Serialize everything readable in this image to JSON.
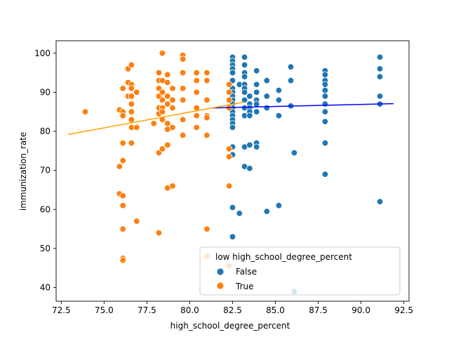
{
  "chart_data": {
    "type": "scatter",
    "xlabel": "high_school_degree_percent",
    "ylabel": "immunization_rate",
    "xlim": [
      72.2,
      92.8
    ],
    "ylim": [
      36.5,
      103.2
    ],
    "xticks": [
      "72.5",
      "75.0",
      "77.5",
      "80.0",
      "82.5",
      "85.0",
      "87.5",
      "90.0",
      "92.5"
    ],
    "yticks": [
      "40",
      "50",
      "60",
      "70",
      "80",
      "90",
      "100"
    ],
    "grid": false,
    "legend": {
      "title": "low high_school_degree_percent",
      "placement": "lower-right",
      "entries": [
        "False",
        "True"
      ]
    },
    "series": [
      {
        "name": "False",
        "color": "#1f77b4",
        "points": [
          [
            82.5,
            99
          ],
          [
            82.5,
            98
          ],
          [
            82.5,
            97
          ],
          [
            82.5,
            96
          ],
          [
            82.5,
            95
          ],
          [
            82.5,
            93
          ],
          [
            82.5,
            91
          ],
          [
            82.5,
            90
          ],
          [
            82.5,
            89
          ],
          [
            82.5,
            88
          ],
          [
            82.5,
            87
          ],
          [
            82.5,
            86
          ],
          [
            82.5,
            85
          ],
          [
            82.5,
            84
          ],
          [
            82.5,
            83
          ],
          [
            82.5,
            82
          ],
          [
            82.5,
            81
          ],
          [
            82.5,
            76
          ],
          [
            82.5,
            74
          ],
          [
            82.5,
            60.5
          ],
          [
            82.5,
            53
          ],
          [
            82.9,
            92
          ],
          [
            82.9,
            59
          ],
          [
            83.2,
            99
          ],
          [
            83.2,
            97
          ],
          [
            83.2,
            95
          ],
          [
            83.2,
            94
          ],
          [
            83.2,
            92
          ],
          [
            83.2,
            91
          ],
          [
            83.2,
            90
          ],
          [
            83.2,
            88
          ],
          [
            83.2,
            86
          ],
          [
            83.2,
            84
          ],
          [
            83.2,
            76
          ],
          [
            83.2,
            71
          ],
          [
            83.5,
            89
          ],
          [
            83.5,
            87
          ],
          [
            83.5,
            86
          ],
          [
            83.5,
            85
          ],
          [
            83.5,
            84
          ],
          [
            83.5,
            76.5
          ],
          [
            83.5,
            70.5
          ],
          [
            83.9,
            95.5
          ],
          [
            83.9,
            92
          ],
          [
            83.9,
            90
          ],
          [
            83.9,
            88
          ],
          [
            83.9,
            87
          ],
          [
            83.9,
            85
          ],
          [
            83.9,
            77
          ],
          [
            83.9,
            76
          ],
          [
            84.5,
            93
          ],
          [
            84.5,
            89
          ],
          [
            84.5,
            86
          ],
          [
            84.5,
            59.5
          ],
          [
            85.2,
            90.5
          ],
          [
            85.2,
            88
          ],
          [
            85.2,
            84
          ],
          [
            85.2,
            61
          ],
          [
            85.9,
            96.5
          ],
          [
            85.9,
            93
          ],
          [
            85.9,
            86.5
          ],
          [
            86.1,
            74.5
          ],
          [
            86.1,
            39
          ],
          [
            87.9,
            95.5
          ],
          [
            87.9,
            94.5
          ],
          [
            87.9,
            93
          ],
          [
            87.9,
            92
          ],
          [
            87.9,
            90.5
          ],
          [
            87.9,
            89
          ],
          [
            87.9,
            87
          ],
          [
            87.9,
            85
          ],
          [
            87.9,
            82.5
          ],
          [
            87.9,
            77
          ],
          [
            87.9,
            69
          ],
          [
            91.1,
            99
          ],
          [
            91.1,
            96
          ],
          [
            91.1,
            94
          ],
          [
            91.1,
            89
          ],
          [
            91.1,
            87
          ],
          [
            91.1,
            62
          ]
        ],
        "fit_line": [
          [
            81.3,
            86.0
          ],
          [
            91.9,
            87.1
          ]
        ],
        "fit_color": "#0000ff"
      },
      {
        "name": "True",
        "color": "#ff7f0e",
        "points": [
          [
            73.9,
            85
          ],
          [
            75.9,
            85.5
          ],
          [
            75.9,
            71
          ],
          [
            75.9,
            64
          ],
          [
            76.1,
            91
          ],
          [
            76.1,
            85
          ],
          [
            76.1,
            84
          ],
          [
            76.1,
            77
          ],
          [
            76.1,
            72.5
          ],
          [
            76.1,
            63.5
          ],
          [
            76.1,
            61
          ],
          [
            76.1,
            55
          ],
          [
            76.1,
            47.5
          ],
          [
            76.1,
            47
          ],
          [
            76.4,
            96
          ],
          [
            76.4,
            92.5
          ],
          [
            76.4,
            89
          ],
          [
            76.6,
            97
          ],
          [
            76.6,
            92
          ],
          [
            76.6,
            91
          ],
          [
            76.6,
            89
          ],
          [
            76.6,
            87
          ],
          [
            76.6,
            85
          ],
          [
            76.6,
            83
          ],
          [
            76.6,
            81
          ],
          [
            76.6,
            77
          ],
          [
            76.9,
            90
          ],
          [
            76.9,
            81
          ],
          [
            76.9,
            57
          ],
          [
            77.9,
            82
          ],
          [
            78.2,
            95
          ],
          [
            78.2,
            93
          ],
          [
            78.2,
            91
          ],
          [
            78.2,
            89
          ],
          [
            78.2,
            86
          ],
          [
            78.2,
            84.5
          ],
          [
            78.2,
            74.5
          ],
          [
            78.2,
            54
          ],
          [
            78.4,
            100
          ],
          [
            78.4,
            93
          ],
          [
            78.4,
            90
          ],
          [
            78.4,
            88
          ],
          [
            78.4,
            86
          ],
          [
            78.4,
            85
          ],
          [
            78.4,
            83
          ],
          [
            78.4,
            75.5
          ],
          [
            78.7,
            94.5
          ],
          [
            78.7,
            92.5
          ],
          [
            78.7,
            89
          ],
          [
            78.7,
            87
          ],
          [
            78.7,
            82
          ],
          [
            78.7,
            80.5
          ],
          [
            78.7,
            76.5
          ],
          [
            78.7,
            65.5
          ],
          [
            79.0,
            91
          ],
          [
            79.0,
            88
          ],
          [
            79.0,
            86
          ],
          [
            79.0,
            81
          ],
          [
            79.0,
            66
          ],
          [
            79.6,
            99.5
          ],
          [
            79.6,
            98.5
          ],
          [
            79.6,
            95
          ],
          [
            79.6,
            91
          ],
          [
            79.6,
            88
          ],
          [
            79.6,
            83
          ],
          [
            79.6,
            79
          ],
          [
            80.4,
            95
          ],
          [
            80.4,
            93
          ],
          [
            80.4,
            90
          ],
          [
            80.4,
            86
          ],
          [
            80.4,
            84
          ],
          [
            80.4,
            81
          ],
          [
            81.0,
            95
          ],
          [
            81.0,
            93
          ],
          [
            81.0,
            88
          ],
          [
            81.0,
            84
          ],
          [
            81.0,
            83.5
          ],
          [
            81.0,
            79
          ],
          [
            81.0,
            55
          ],
          [
            81.0,
            48
          ],
          [
            82.3,
            92
          ],
          [
            82.3,
            90
          ],
          [
            82.3,
            88
          ],
          [
            82.3,
            86
          ],
          [
            82.3,
            75.5
          ],
          [
            82.3,
            73.5
          ],
          [
            82.3,
            66
          ],
          [
            82.3,
            45.5
          ]
        ],
        "fit_line": [
          [
            72.9,
            79.2
          ],
          [
            83.2,
            87.5
          ]
        ],
        "fit_color": "#ffa500"
      }
    ]
  }
}
